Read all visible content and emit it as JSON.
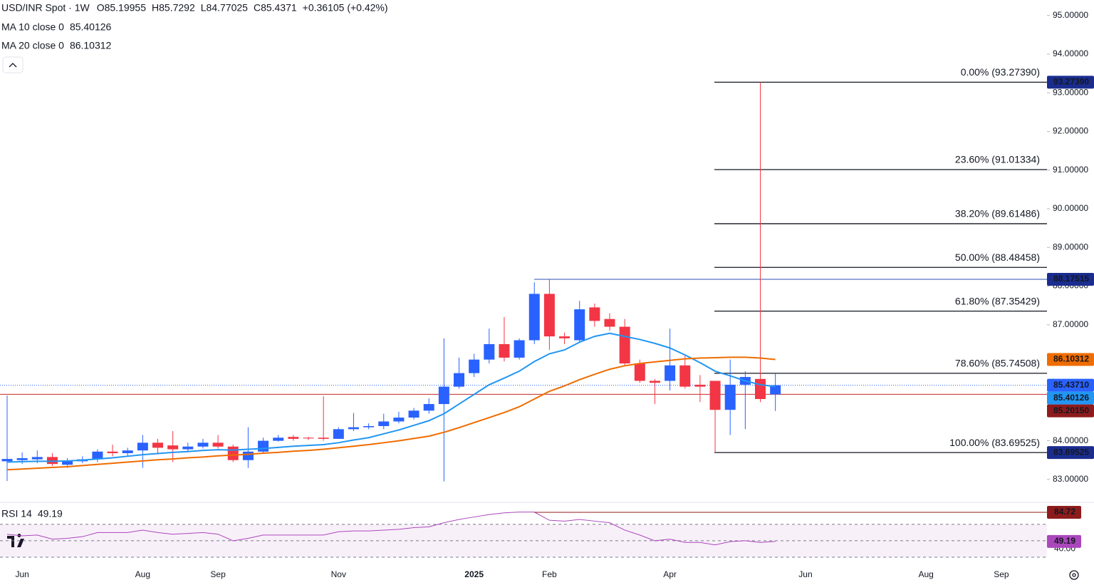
{
  "chart_data": {
    "type": "candlestick",
    "title": "USD/INR Spot · 1W",
    "ohlc": [
      {
        "label": "O",
        "value": 85.19955
      },
      {
        "label": "H",
        "value": 85.7292
      },
      {
        "label": "L",
        "value": 84.77025
      },
      {
        "label": "C",
        "value": 85.4371
      }
    ],
    "change": "+0.36105 (+0.42%)",
    "up_color": "#2962ff",
    "down_color": "#f23645",
    "open": [
      83.47,
      83.5,
      83.52,
      83.58,
      83.38,
      83.47,
      83.52,
      83.72,
      83.68,
      83.75,
      83.95,
      83.88,
      83.78,
      83.85,
      83.95,
      83.85,
      83.5,
      83.72,
      84.0,
      84.1,
      84.08,
      84.08,
      84.05,
      84.3,
      84.35,
      84.38,
      84.5,
      84.6,
      84.78,
      84.95,
      85.4,
      85.75,
      86.1,
      86.5,
      86.15,
      86.6,
      87.8,
      86.7,
      86.6,
      87.45,
      87.15,
      86.95,
      86.0,
      85.55,
      85.55,
      85.95,
      85.45,
      85.55,
      84.8,
      85.45,
      85.6,
      85.19955
    ],
    "high": [
      85.17,
      83.7,
      83.75,
      83.68,
      83.55,
      83.6,
      83.78,
      83.9,
      83.82,
      84.15,
      84.05,
      84.25,
      83.95,
      84.05,
      84.15,
      83.9,
      84.35,
      84.08,
      84.15,
      84.15,
      84.1,
      85.15,
      84.35,
      84.72,
      84.45,
      84.7,
      84.75,
      84.85,
      85.1,
      86.65,
      86.15,
      86.25,
      86.9,
      87.2,
      86.65,
      88.1,
      88.17515,
      86.8,
      87.62,
      87.55,
      87.3,
      87.15,
      86.1,
      85.6,
      86.9,
      86.2,
      85.7,
      85.55,
      86.1,
      85.8,
      93.2739,
      85.7292
    ],
    "low": [
      82.96,
      83.4,
      83.42,
      83.35,
      83.3,
      83.42,
      83.45,
      83.6,
      83.6,
      83.3,
      83.65,
      83.45,
      83.7,
      83.8,
      83.8,
      83.45,
      83.3,
      83.7,
      83.98,
      84.0,
      84.02,
      84.0,
      84.05,
      84.25,
      84.3,
      84.3,
      84.45,
      84.55,
      84.7,
      82.95,
      85.35,
      85.65,
      86.0,
      86.05,
      86.1,
      86.5,
      86.35,
      86.5,
      86.55,
      86.95,
      86.85,
      85.95,
      85.5,
      84.95,
      85.3,
      85.35,
      85.0,
      83.69525,
      84.15,
      84.3,
      85.0,
      84.77025
    ],
    "close": [
      83.53,
      83.55,
      83.58,
      83.4,
      83.48,
      83.52,
      83.72,
      83.68,
      83.75,
      83.95,
      83.82,
      83.78,
      83.85,
      83.95,
      83.85,
      83.5,
      83.72,
      84.0,
      84.08,
      84.05,
      84.06,
      84.05,
      84.3,
      84.35,
      84.38,
      84.5,
      84.6,
      84.78,
      84.95,
      85.4,
      85.75,
      86.1,
      86.5,
      86.15,
      86.6,
      87.8,
      86.7,
      86.65,
      87.4,
      87.1,
      86.95,
      86.0,
      85.55,
      85.5,
      85.95,
      85.4,
      85.4,
      84.8,
      85.45,
      85.65,
      85.08,
      85.4371
    ],
    "series": [
      {
        "name": "MA 10 close 0",
        "color": "#2196f3",
        "last": 85.40126,
        "values": [
          83.45,
          83.46,
          83.47,
          83.47,
          83.48,
          83.5,
          83.53,
          83.56,
          83.6,
          83.64,
          83.67,
          83.7,
          83.72,
          83.75,
          83.77,
          83.76,
          83.78,
          83.8,
          83.83,
          83.86,
          83.88,
          83.9,
          83.95,
          84.02,
          84.08,
          84.18,
          84.28,
          84.4,
          84.52,
          84.7,
          84.95,
          85.2,
          85.45,
          85.62,
          85.8,
          86.05,
          86.25,
          86.35,
          86.55,
          86.7,
          86.78,
          86.7,
          86.62,
          86.52,
          86.4,
          86.22,
          86.02,
          85.8,
          85.68,
          85.55,
          85.45,
          85.40126
        ]
      },
      {
        "name": "MA 20 close 0",
        "color": "#ef6c00",
        "last": 86.10312,
        "values": [
          83.25,
          83.27,
          83.29,
          83.31,
          83.33,
          83.36,
          83.39,
          83.42,
          83.45,
          83.48,
          83.51,
          83.53,
          83.56,
          83.58,
          83.61,
          83.63,
          83.65,
          83.68,
          83.7,
          83.73,
          83.75,
          83.78,
          83.82,
          83.86,
          83.9,
          83.95,
          84.0,
          84.06,
          84.12,
          84.22,
          84.34,
          84.47,
          84.6,
          84.73,
          84.88,
          85.08,
          85.28,
          85.42,
          85.58,
          85.72,
          85.85,
          85.94,
          86.0,
          86.04,
          86.08,
          86.12,
          86.14,
          86.15,
          86.16,
          86.16,
          86.14,
          86.10312
        ]
      }
    ],
    "ylim": [
      82.5,
      95.4
    ],
    "yticks": [
      {
        "value": 83,
        "label": "83.00000"
      },
      {
        "value": 84,
        "label": "84.00000"
      },
      {
        "value": 87,
        "label": "87.00000"
      },
      {
        "value": 88,
        "label": "88.00000"
      },
      {
        "value": 89,
        "label": "89.00000"
      },
      {
        "value": 90,
        "label": "90.00000"
      },
      {
        "value": 91,
        "label": "91.00000"
      },
      {
        "value": 92,
        "label": "92.00000"
      },
      {
        "value": 93,
        "label": "93.00000"
      },
      {
        "value": 94,
        "label": "94.00000"
      },
      {
        "value": 95,
        "label": "95.00000"
      }
    ],
    "xticks": [
      {
        "value": 1,
        "label": "Jun"
      },
      {
        "value": 9,
        "label": "Aug"
      },
      {
        "value": 14,
        "label": "Sep"
      },
      {
        "value": 22,
        "label": "Nov"
      },
      {
        "value": 31,
        "label": "2025"
      },
      {
        "value": 36,
        "label": "Feb"
      },
      {
        "value": 44,
        "label": "Apr"
      },
      {
        "value": 53,
        "label": "Jun"
      },
      {
        "value": 61,
        "label": "Aug"
      },
      {
        "value": 66,
        "label": "Sep"
      }
    ],
    "fib_levels": [
      {
        "label": "0.00% (93.27390)",
        "value": 93.2739
      },
      {
        "label": "23.60% (91.01334)",
        "value": 91.01334
      },
      {
        "label": "38.20% (89.61486)",
        "value": 89.61486
      },
      {
        "label": "50.00% (88.48458)",
        "value": 88.48458
      },
      {
        "label": "61.80% (87.35429)",
        "value": 87.35429
      },
      {
        "label": "78.60% (85.74508)",
        "value": 85.74508
      },
      {
        "label": "100.00% (83.69525)",
        "value": 83.69525
      }
    ],
    "price_tags": [
      {
        "value": 93.2739,
        "label": "93.27390",
        "color": "#1a2d8f"
      },
      {
        "value": 88.17515,
        "label": "88.17515",
        "color": "#1a2d8f"
      },
      {
        "value": 86.10312,
        "label": "86.10312",
        "color": "#ef6c00"
      },
      {
        "value": 85.4371,
        "label": "85.43710",
        "color": "#2962ff"
      },
      {
        "value": 85.40126,
        "label": "85.40126",
        "color": "#2196f3"
      },
      {
        "value": 85.2015,
        "label": "85.20150",
        "color": "#8e1b1b"
      },
      {
        "value": 83.69525,
        "label": "83.69525",
        "color": "#1a2d8f"
      }
    ],
    "rsi": {
      "name": "RSI 14",
      "color": "#ab47bc",
      "last": 49.19,
      "values": [
        58,
        56,
        57,
        52,
        53,
        55,
        60,
        60,
        60,
        63,
        60,
        58,
        59,
        60,
        58,
        50,
        53,
        57,
        57,
        57,
        57,
        57,
        61,
        62,
        62,
        63,
        64,
        66,
        67,
        72,
        76,
        79,
        82,
        84,
        85,
        85,
        75,
        74,
        76,
        74,
        72,
        63,
        57,
        50,
        52,
        48,
        48,
        45,
        49,
        50,
        48,
        49.19
      ],
      "ylim": [
        23,
        96
      ],
      "yticks": [
        {
          "value": 40,
          "label": "40.00"
        }
      ],
      "levels": [
        30,
        50,
        70
      ],
      "tags": [
        {
          "value": 84.72,
          "label": "84.72",
          "color": "#8e1b1b"
        },
        {
          "value": 49.19,
          "label": "49.19",
          "color": "#ab47bc"
        }
      ]
    }
  }
}
